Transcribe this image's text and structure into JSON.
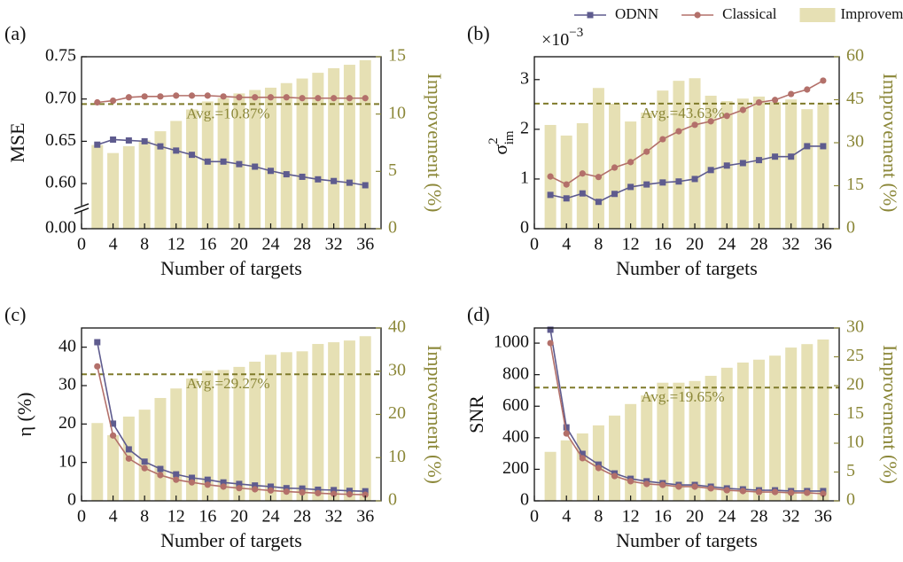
{
  "chart_data": [
    {
      "type": "combo",
      "panel_label": "(a)",
      "legend": "above",
      "xlabel": "Number of targets",
      "ylabel": "MSE",
      "y2label": "Improvement (%)",
      "x": [
        2,
        4,
        6,
        8,
        10,
        12,
        14,
        16,
        18,
        20,
        22,
        24,
        26,
        28,
        30,
        32,
        34,
        36
      ],
      "xlim": [
        0,
        38
      ],
      "xticks": [
        0,
        4,
        8,
        12,
        16,
        20,
        24,
        28,
        32,
        36
      ],
      "ylim": [
        0,
        0.75
      ],
      "ybreak": [
        0.02,
        0.575
      ],
      "yticks": [
        {
          "value": 0,
          "label": "0.00"
        },
        {
          "value": 0.6,
          "label": "0.60"
        },
        0.65,
        {
          "value": 0.7,
          "label": "0.70"
        },
        0.75
      ],
      "y2lim": [
        0,
        15
      ],
      "y2ticks": [
        0,
        5,
        10,
        15
      ],
      "series": [
        {
          "name": "ODNN",
          "color": "#5e5b8e",
          "marker": "square",
          "values": [
            0.646,
            0.652,
            0.651,
            0.65,
            0.644,
            0.639,
            0.634,
            0.626,
            0.626,
            0.623,
            0.62,
            0.615,
            0.611,
            0.608,
            0.605,
            0.603,
            0.601,
            0.598
          ]
        },
        {
          "name": "Classical",
          "color": "#b3706a",
          "marker": "circle",
          "values": [
            0.696,
            0.698,
            0.702,
            0.703,
            0.703,
            0.704,
            0.704,
            0.704,
            0.703,
            0.702,
            0.702,
            0.702,
            0.702,
            0.701,
            0.701,
            0.701,
            0.701,
            0.701
          ]
        },
        {
          "name": "Improvement",
          "color": "#e6e0b4",
          "kind": "bar",
          "axis": "y2",
          "values": [
            7.3,
            6.6,
            7.2,
            7.7,
            8.5,
            9.4,
            10.4,
            11.1,
            11.4,
            11.8,
            12.1,
            12.3,
            12.7,
            13.1,
            13.6,
            14.0,
            14.3,
            14.7
          ]
        }
      ],
      "annotations": [
        {
          "text": "Avg.=10.87%",
          "value": 10.87,
          "axis": "y2"
        }
      ]
    },
    {
      "type": "combo",
      "panel_label": "(b)",
      "xlabel": "Number of targets",
      "ylabel": "σ",
      "ylabel_sup": "2",
      "ylabel_sub": "im",
      "y_multiplier": "×10",
      "y_multiplier_exp": "−3",
      "y2label": "Improvement (%)",
      "x": [
        2,
        4,
        6,
        8,
        10,
        12,
        14,
        16,
        18,
        20,
        22,
        24,
        26,
        28,
        30,
        32,
        34,
        36
      ],
      "xlim": [
        0,
        38
      ],
      "xticks": [
        0,
        4,
        8,
        12,
        16,
        20,
        24,
        28,
        32,
        36
      ],
      "ylim": [
        0,
        3.46
      ],
      "yticks": [
        0,
        1,
        2,
        3
      ],
      "y2lim": [
        0,
        60
      ],
      "y2ticks": [
        0,
        15,
        30,
        45,
        60
      ],
      "series": [
        {
          "name": "ODNN",
          "color": "#5e5b8e",
          "marker": "square",
          "values": [
            0.68,
            0.61,
            0.71,
            0.54,
            0.7,
            0.84,
            0.89,
            0.93,
            0.95,
            1.0,
            1.18,
            1.27,
            1.32,
            1.38,
            1.45,
            1.45,
            1.66,
            1.66
          ]
        },
        {
          "name": "Classical",
          "color": "#b3706a",
          "marker": "circle",
          "values": [
            1.05,
            0.89,
            1.11,
            1.04,
            1.23,
            1.34,
            1.55,
            1.8,
            1.96,
            2.09,
            2.16,
            2.27,
            2.39,
            2.54,
            2.59,
            2.71,
            2.8,
            2.98
          ]
        },
        {
          "name": "Improvement",
          "color": "#e6e0b4",
          "kind": "bar",
          "axis": "y2",
          "values": [
            36.2,
            32.5,
            36.8,
            49.1,
            43.6,
            37.4,
            40.5,
            48.2,
            51.6,
            52.5,
            46.4,
            44.5,
            45.4,
            46.1,
            44.2,
            45.1,
            41.7,
            43.9
          ]
        }
      ],
      "annotations": [
        {
          "text": "Avg.=43.63%",
          "value": 43.63,
          "axis": "y2"
        }
      ]
    },
    {
      "type": "combo",
      "panel_label": "(c)",
      "xlabel": "Number of targets",
      "ylabel": "η (%)",
      "y2label": "Improvement (%)",
      "x": [
        2,
        4,
        6,
        8,
        10,
        12,
        14,
        16,
        18,
        20,
        22,
        24,
        26,
        28,
        30,
        32,
        34,
        36
      ],
      "xlim": [
        0,
        38
      ],
      "xticks": [
        0,
        4,
        8,
        12,
        16,
        20,
        24,
        28,
        32,
        36
      ],
      "ylim": [
        0,
        45
      ],
      "yticks": [
        0,
        10,
        20,
        30,
        40
      ],
      "y2lim": [
        0,
        40
      ],
      "y2ticks": [
        0,
        10,
        20,
        30,
        40
      ],
      "series": [
        {
          "name": "ODNN",
          "color": "#5e5b8e",
          "marker": "square",
          "values": [
            41.3,
            20.1,
            13.4,
            10.2,
            8.3,
            6.9,
            6.0,
            5.5,
            4.8,
            4.4,
            4.0,
            3.7,
            3.3,
            3.2,
            2.9,
            2.8,
            2.6,
            2.5
          ]
        },
        {
          "name": "Classical",
          "color": "#b3706a",
          "marker": "circle",
          "values": [
            35.0,
            17.0,
            11.0,
            8.5,
            6.7,
            5.5,
            4.8,
            4.2,
            3.7,
            3.3,
            3.0,
            2.7,
            2.4,
            2.2,
            2.0,
            1.8,
            1.7,
            1.6
          ]
        },
        {
          "name": "Improvement",
          "color": "#e6e0b4",
          "kind": "bar",
          "axis": "y2",
          "values": [
            18.0,
            15.2,
            19.5,
            21.1,
            23.8,
            26.0,
            28.3,
            30.1,
            30.3,
            31.0,
            32.2,
            33.8,
            34.4,
            34.6,
            36.3,
            36.7,
            37.1,
            38.1
          ]
        }
      ],
      "annotations": [
        {
          "text": "Avg.=29.27%",
          "value": 29.27,
          "axis": "y2"
        }
      ]
    },
    {
      "type": "combo",
      "panel_label": "(d)",
      "xlabel": "Number of targets",
      "ylabel": "SNR",
      "y2label": "Improvement (%)",
      "x": [
        2,
        4,
        6,
        8,
        10,
        12,
        14,
        16,
        18,
        20,
        22,
        24,
        26,
        28,
        30,
        32,
        34,
        36
      ],
      "xlim": [
        0,
        38
      ],
      "xticks": [
        0,
        4,
        8,
        12,
        16,
        20,
        24,
        28,
        32,
        36
      ],
      "ylim": [
        0,
        1096
      ],
      "yticks": [
        0,
        200,
        400,
        600,
        800,
        1000
      ],
      "y2lim": [
        0,
        30
      ],
      "y2ticks": [
        0,
        5,
        10,
        15,
        20,
        25,
        30
      ],
      "series": [
        {
          "name": "ODNN",
          "color": "#5e5b8e",
          "marker": "square",
          "values": [
            1085,
            466,
            298,
            230,
            174,
            140,
            124,
            112,
            101,
            101,
            90,
            79,
            73,
            67,
            67,
            62,
            62,
            62
          ]
        },
        {
          "name": "Classical",
          "color": "#b3706a",
          "marker": "circle",
          "values": [
            1000,
            427,
            270,
            208,
            157,
            124,
            107,
            101,
            90,
            90,
            79,
            67,
            62,
            56,
            56,
            51,
            51,
            45
          ]
        },
        {
          "name": "Improvement",
          "color": "#e6e0b4",
          "kind": "bar",
          "axis": "y2",
          "values": [
            8.5,
            10.5,
            11.7,
            13.1,
            14.8,
            16.8,
            18.3,
            20.5,
            20.5,
            20.8,
            21.7,
            23.1,
            24.0,
            24.5,
            25.2,
            26.6,
            27.2,
            28.0
          ]
        }
      ],
      "annotations": [
        {
          "text": "Avg.=19.65%",
          "value": 19.65,
          "axis": "y2"
        }
      ]
    }
  ]
}
